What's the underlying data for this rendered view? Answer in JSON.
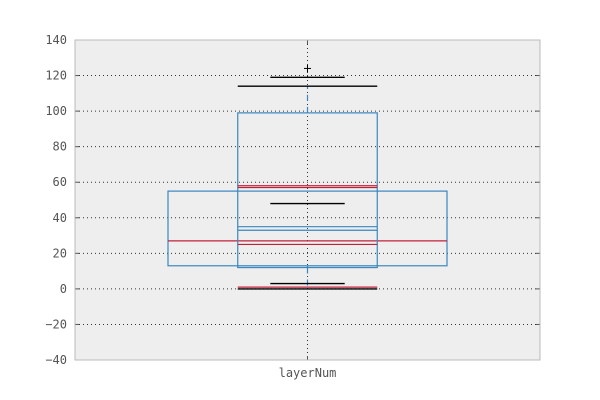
{
  "chart_data": {
    "type": "box",
    "title": "",
    "xlabel": "",
    "ylabel": "",
    "ylim": [
      -40,
      140
    ],
    "yticks": [
      -40,
      -20,
      0,
      20,
      40,
      60,
      80,
      100,
      120,
      140
    ],
    "ytick_labels": [
      "−40",
      "−20",
      "0",
      "20",
      "40",
      "60",
      "80",
      "100",
      "120",
      "140"
    ],
    "categories": [
      "layerNum"
    ],
    "grid": true,
    "background_color": "#eeeeee",
    "box_color": "#3a87c0",
    "median_color": "#c0213a",
    "whisker_color": "#3a87c0",
    "cap_color": "#000000",
    "boxes": [
      {
        "q1": 13,
        "median": 27,
        "q3": 55,
        "whisker_low": 12,
        "whisker_high": 55,
        "width": 0.6
      },
      {
        "q1": 12,
        "median": 25,
        "q3": 99,
        "whisker_low": 0,
        "whisker_high": 114,
        "width": 0.3
      }
    ],
    "inner_lines": [
      {
        "value": 33,
        "color": "#3a87c0",
        "width": 0.3
      },
      {
        "value": 35,
        "color": "#3a87c0",
        "width": 0.3
      },
      {
        "value": 57,
        "color": "#c0213a",
        "width": 0.3
      },
      {
        "value": 58,
        "color": "#c0213a",
        "width": 0.3
      },
      {
        "value": 1,
        "color": "#c0213a",
        "width": 0.3
      }
    ],
    "caps": [
      {
        "value": 114,
        "width": 0.3
      },
      {
        "value": 119,
        "width": 0.16
      },
      {
        "value": 48,
        "width": 0.16
      },
      {
        "value": 3,
        "width": 0.16
      },
      {
        "value": 0,
        "width": 0.3
      }
    ],
    "outliers": [
      124
    ]
  }
}
